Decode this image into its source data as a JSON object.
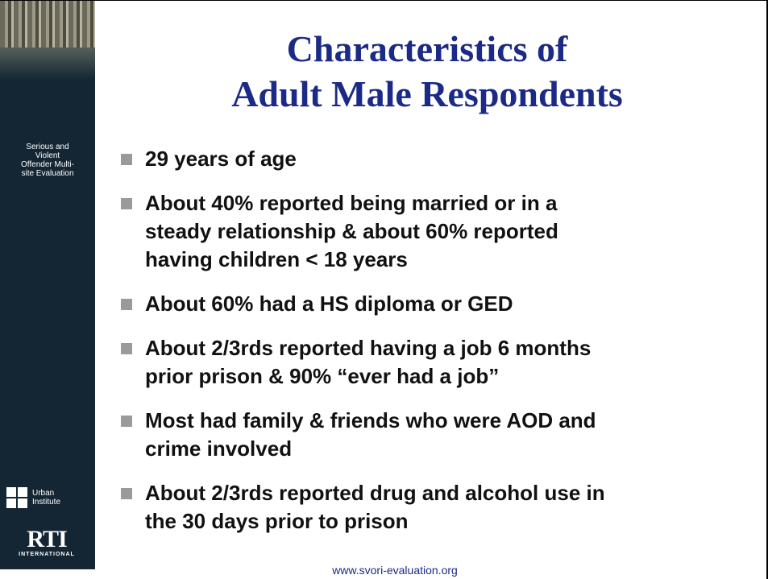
{
  "sidebar": {
    "program_name": [
      "Serious and",
      "Violent",
      "Offender Multi-",
      "site Evaluation"
    ],
    "urban_logo": [
      "Urban",
      "Institute"
    ],
    "rti_logo": {
      "name": "RTI",
      "subtitle": "INTERNATIONAL"
    }
  },
  "title": [
    "Characteristics of",
    "Adult Male Respondents"
  ],
  "bullets": [
    [
      "29 years of age"
    ],
    [
      "About 40% reported being married or in a",
      "steady relationship & about 60% reported",
      "having children < 18 years"
    ],
    [
      "About 60% had a HS diploma or GED"
    ],
    [
      "About 2/3rds reported having a job 6 months",
      "prior prison & 90% “ever had a job”"
    ],
    [
      "Most had family & friends who were AOD and",
      "crime involved"
    ],
    [
      "About 2/3rds reported drug and alcohol use in",
      "the 30 days prior to prison"
    ]
  ],
  "footer": "www.svori-evaluation.org"
}
